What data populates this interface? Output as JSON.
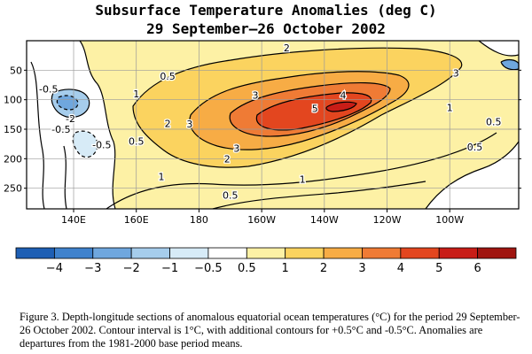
{
  "chart_data": {
    "type": "heatmap",
    "title": "Subsurface Temperature Anomalies (deg C)",
    "subtitle": "29 September–26 October 2002",
    "xlabel": "",
    "ylabel": "",
    "x_ticks": [
      "140E",
      "160E",
      "180",
      "160W",
      "140W",
      "120W",
      "100W"
    ],
    "y_ticks": [
      "50",
      "100",
      "150",
      "200",
      "250"
    ],
    "xlim_deg_east": [
      125,
      282
    ],
    "ylim_depth": [
      0,
      285
    ],
    "y_reversed": true,
    "grid": true,
    "colorbar": {
      "labels": [
        "−4",
        "−3",
        "−2",
        "−1",
        "−0.5",
        "0.5",
        "1",
        "2",
        "3",
        "4",
        "5",
        "6"
      ],
      "values": [
        -4,
        -3,
        -2,
        -1,
        -0.5,
        0.5,
        1,
        2,
        3,
        4,
        5,
        6
      ],
      "colors": [
        "#1e5fb4",
        "#3f82cd",
        "#6fa7de",
        "#a6cdec",
        "#d7ebf7",
        "#ffffff",
        "#fdf1a5",
        "#fbd35f",
        "#f7ac45",
        "#ef7b35",
        "#e3461f",
        "#c81d17",
        "#a01510"
      ]
    },
    "contour_labels": [
      {
        "text": "2",
        "lon": 208,
        "depth": 12
      },
      {
        "text": "3",
        "lon": 262,
        "depth": 55
      },
      {
        "text": "0.5",
        "lon": 170,
        "depth": 60
      },
      {
        "text": "-0.5",
        "lon": 132,
        "depth": 82
      },
      {
        "text": "1",
        "lon": 160,
        "depth": 90
      },
      {
        "text": "3",
        "lon": 198,
        "depth": 92
      },
      {
        "text": "4",
        "lon": 226,
        "depth": 92
      },
      {
        "text": "5",
        "lon": 217,
        "depth": 115
      },
      {
        "text": "-2",
        "lon": 139,
        "depth": 132
      },
      {
        "text": "2",
        "lon": 170,
        "depth": 140
      },
      {
        "text": "3",
        "lon": 177,
        "depth": 141
      },
      {
        "text": "-0.5",
        "lon": 136,
        "depth": 150
      },
      {
        "text": "1",
        "lon": 260,
        "depth": 113
      },
      {
        "text": "0.5",
        "lon": 274,
        "depth": 137
      },
      {
        "text": "0.5",
        "lon": 160,
        "depth": 170
      },
      {
        "text": "-0.5",
        "lon": 149,
        "depth": 176
      },
      {
        "text": "3",
        "lon": 192,
        "depth": 182
      },
      {
        "text": "2",
        "lon": 189,
        "depth": 200
      },
      {
        "text": "0.5",
        "lon": 268,
        "depth": 180
      },
      {
        "text": "1",
        "lon": 168,
        "depth": 230
      },
      {
        "text": "1",
        "lon": 213,
        "depth": 235
      },
      {
        "text": "0.5",
        "lon": 190,
        "depth": 262
      }
    ]
  },
  "caption": "Figure 3. Depth-longitude sections of anomalous equatorial ocean temperatures (°C) for the period 29 September-26 October 2002. Contour interval is 1°C, with additional contours for +0.5°C and -0.5°C. Anomalies are departures from the 1981-2000 base period means."
}
